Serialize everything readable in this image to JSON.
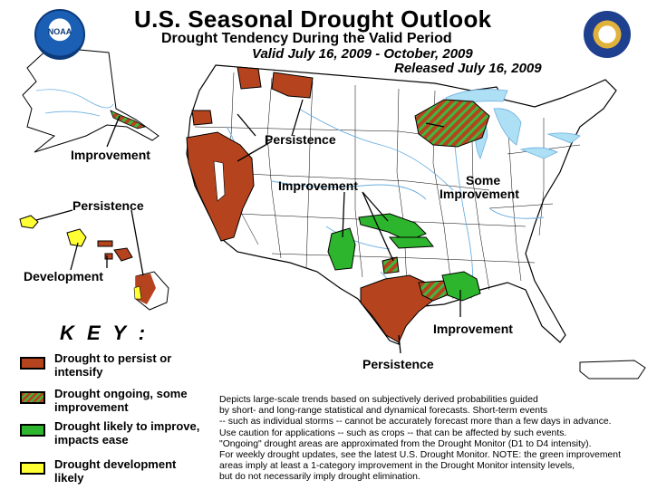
{
  "header": {
    "title": "U.S. Seasonal Drought Outlook",
    "subtitle": "Drought Tendency During the Valid Period",
    "valid": "Valid July 16, 2009 - October, 2009",
    "released": "Released July 16, 2009"
  },
  "logos": {
    "left": "NOAA",
    "right": "Department of Commerce seal"
  },
  "map_labels": {
    "persistence_west": "Persistence",
    "improvement_alaska": "Improvement",
    "persistence_hawaii": "Persistence",
    "development_hawaii": "Development",
    "improvement_plains": "Improvement",
    "some_improvement_line1": "Some",
    "some_improvement_line2": "Improvement",
    "improvement_south": "Improvement",
    "persistence_texas": "Persistence"
  },
  "key": {
    "title": "K E Y :",
    "items": [
      {
        "label": "Drought to persist or intensify",
        "color": "#b5441e",
        "pattern": "solid"
      },
      {
        "label": "Drought ongoing, some improvement",
        "color": "#b5441e",
        "stripe_color": "#3fb83f",
        "pattern": "hatched"
      },
      {
        "label": "Drought likely to improve, impacts ease",
        "color": "#2db52d",
        "pattern": "solid"
      },
      {
        "label": "Drought development likely",
        "color": "#ffff33",
        "pattern": "solid"
      }
    ]
  },
  "notes": [
    "Depicts large-scale trends based on subjectively derived probabilities guided",
    "by short- and long-range statistical and dynamical forecasts. Short-term events",
    "-- such as individual storms -- cannot be accurately forecast more than a few days in advance.",
    "Use caution for applications -- such as crops -- that can be affected by such events.",
    "\"Ongoing\" drought areas are approximated from the Drought Monitor (D1 to D4 intensity).",
    "For weekly drought updates, see the latest U.S. Drought Monitor. NOTE: the green improvement",
    "areas imply at least a 1-category improvement in the Drought Monitor intensity levels,",
    "but do not necessarily imply drought elimination."
  ],
  "colors": {
    "persist": "#b5441e",
    "improve": "#2db52d",
    "develop": "#ffff33",
    "hatch": "#3fb83f",
    "water": "#aee0f5",
    "rivers": "#6aaee0"
  }
}
